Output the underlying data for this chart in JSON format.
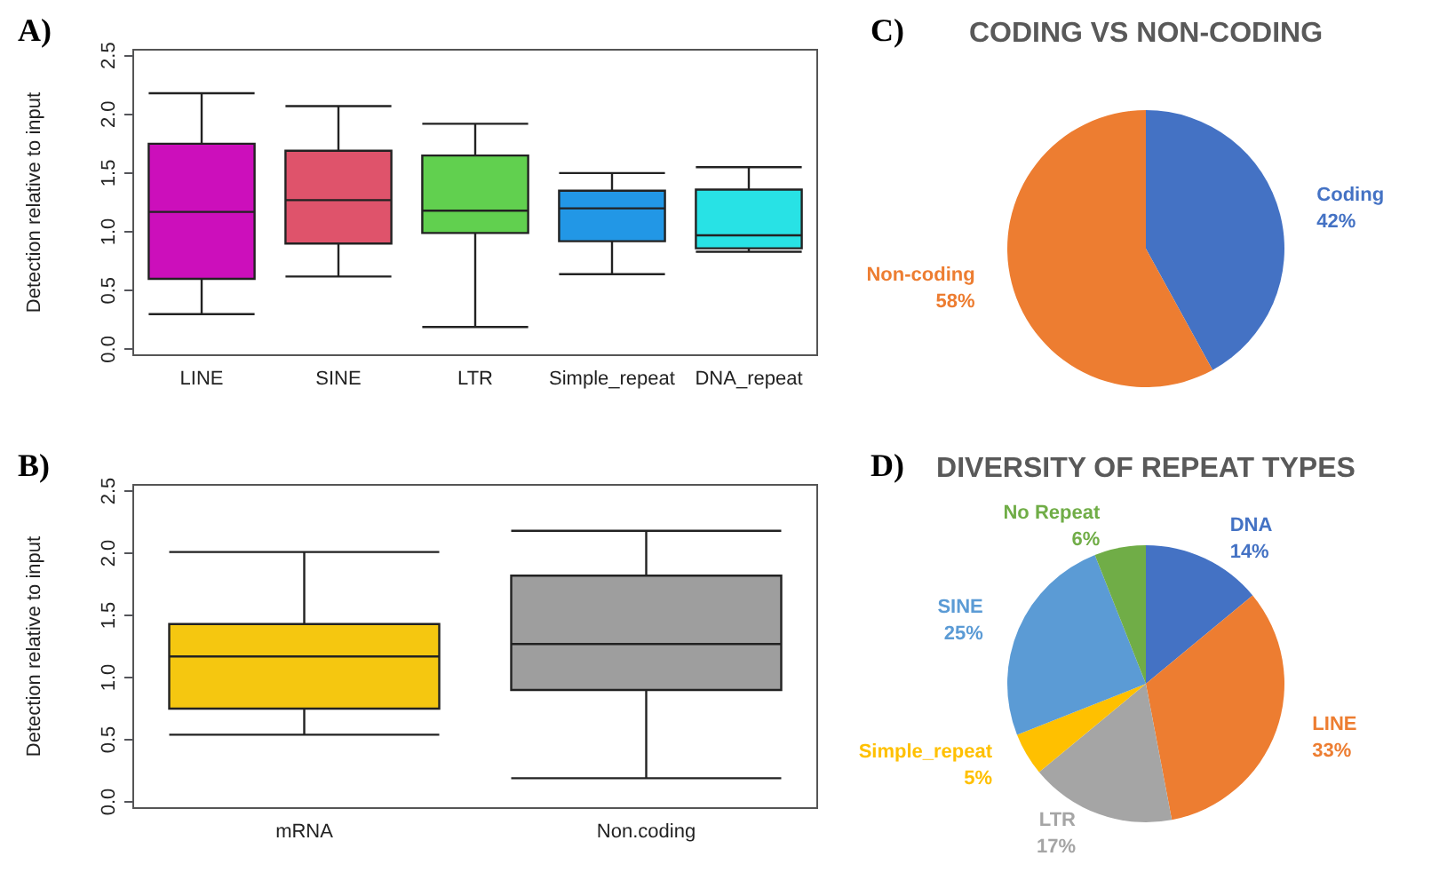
{
  "chart_data": [
    {
      "type": "box",
      "annotations": [
        "A)"
      ],
      "categories": [
        "LINE",
        "SINE",
        "LTR",
        "Simple_repeat",
        "DNA_repeat"
      ],
      "ylabel": "Detection relative to input",
      "ylim": [
        -0.05,
        2.55
      ],
      "yticks": [
        {
          "value": 0,
          "label": "0.0"
        },
        0.5,
        {
          "value": 1,
          "label": "1.0"
        },
        1.5,
        {
          "value": 2,
          "label": "2.0"
        },
        2.5
      ],
      "colors": [
        "#cc0fbb",
        "#df536b",
        "#61d04f",
        "#2297e6",
        "#28e2e5"
      ],
      "boxes": [
        {
          "low": 0.3,
          "q1": 0.6,
          "median": 1.17,
          "q3": 1.75,
          "high": 2.18
        },
        {
          "low": 0.62,
          "q1": 0.9,
          "median": 1.27,
          "q3": 1.69,
          "high": 2.07
        },
        {
          "low": 0.19,
          "q1": 0.99,
          "median": 1.18,
          "q3": 1.65,
          "high": 1.92
        },
        {
          "low": 0.64,
          "q1": 0.92,
          "median": 1.2,
          "q3": 1.35,
          "high": 1.5
        },
        {
          "low": 0.83,
          "q1": 0.86,
          "median": 0.97,
          "q3": 1.36,
          "high": 1.55
        }
      ]
    },
    {
      "type": "box",
      "annotations": [
        "B)"
      ],
      "categories": [
        "mRNA",
        "Non.coding"
      ],
      "ylabel": "Detection relative to input",
      "ylim": [
        -0.05,
        2.55
      ],
      "yticks": [
        {
          "value": 0,
          "label": "0.0"
        },
        0.5,
        {
          "value": 1,
          "label": "1.0"
        },
        1.5,
        {
          "value": 2,
          "label": "2.0"
        },
        2.5
      ],
      "colors": [
        "#f5c710",
        "#9e9e9e"
      ],
      "boxes": [
        {
          "low": 0.54,
          "q1": 0.75,
          "median": 1.17,
          "q3": 1.43,
          "high": 2.01
        },
        {
          "low": 0.19,
          "q1": 0.9,
          "median": 1.27,
          "q3": 1.82,
          "high": 2.18
        }
      ]
    },
    {
      "type": "pie",
      "title": "CODING VS NON-CODING",
      "annotations": [
        "C)"
      ],
      "categories": [
        "Coding",
        "Non-coding"
      ],
      "values": [
        42,
        58
      ],
      "colors": [
        "#4472c4",
        "#ed7d31"
      ],
      "value_labels": [
        "42%",
        "58%"
      ]
    },
    {
      "type": "pie",
      "title": "DIVERSITY OF REPEAT TYPES",
      "annotations": [
        "D)"
      ],
      "categories": [
        "DNA",
        "LINE",
        "LTR",
        "Simple_repeat",
        "SINE",
        "No Repeat"
      ],
      "values": [
        14,
        33,
        17,
        5,
        25,
        6
      ],
      "colors": [
        "#4472c4",
        "#ed7d31",
        "#a5a5a5",
        "#ffc000",
        "#5b9bd5",
        "#70ad47"
      ],
      "value_labels": [
        "14%",
        "33%",
        "17%",
        "5%",
        "25%",
        "6%"
      ]
    }
  ]
}
